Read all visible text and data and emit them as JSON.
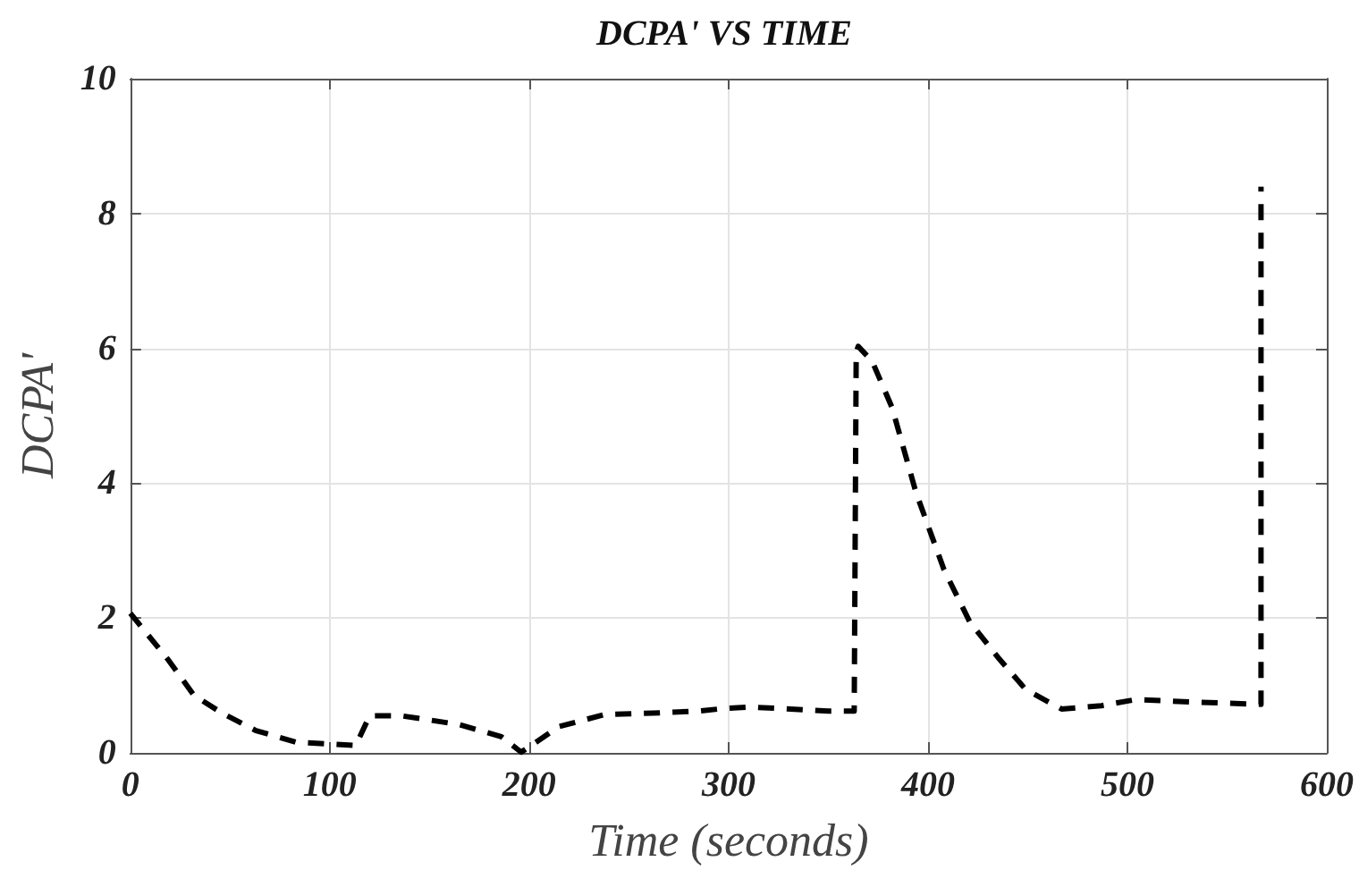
{
  "chart_data": {
    "type": "line",
    "title": "DCPA' VS TIME",
    "xlabel": "Time (seconds)",
    "ylabel": "DCPA'",
    "x": [
      0,
      19,
      32,
      46,
      63,
      83,
      113,
      120,
      136,
      165,
      186,
      196,
      215,
      238,
      262,
      285,
      298,
      311,
      350,
      363,
      364,
      365,
      372,
      382,
      394,
      408,
      421,
      435,
      449,
      467,
      487,
      504,
      537,
      567,
      567
    ],
    "series": [
      {
        "color": "#000000",
        "values": [
          2.07,
          1.38,
          0.85,
          0.59,
          0.33,
          0.16,
          0.11,
          0.55,
          0.55,
          0.42,
          0.24,
          0.01,
          0.39,
          0.57,
          0.59,
          0.62,
          0.66,
          0.68,
          0.62,
          0.62,
          5.94,
          6.03,
          5.81,
          5.12,
          3.86,
          2.72,
          1.94,
          1.42,
          0.94,
          0.65,
          0.7,
          0.79,
          0.75,
          0.72,
          8.4
        ]
      }
    ],
    "xlim": [
      0,
      600
    ],
    "xticks": [
      0,
      100,
      200,
      300,
      400,
      500,
      600
    ],
    "ylim": [
      0,
      10
    ],
    "yticks": [
      0,
      2,
      4,
      6,
      8,
      10
    ],
    "grid": true,
    "marker": "none",
    "line_style": "dashed"
  }
}
